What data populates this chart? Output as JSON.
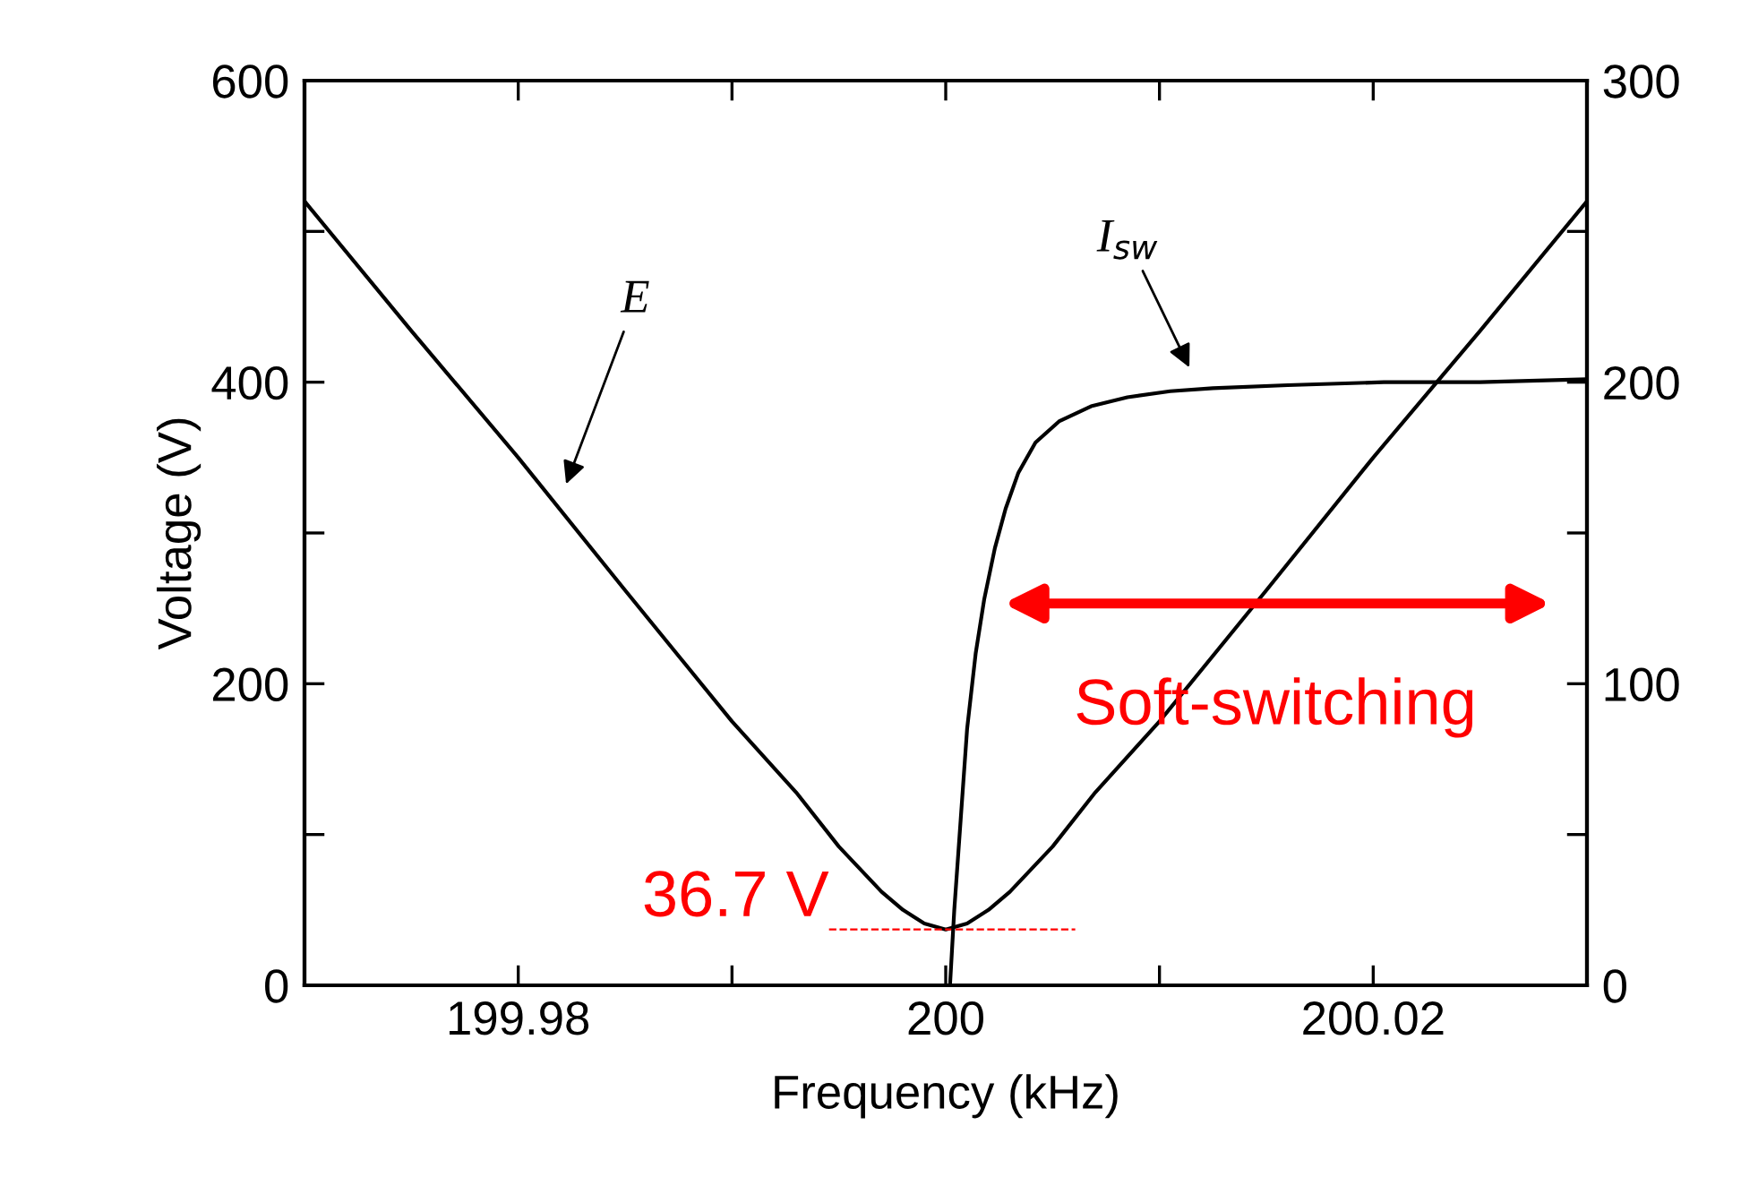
{
  "chart_data": {
    "type": "line",
    "xlabel": "Frequency (kHz)",
    "ylabel": "Voltage (V)",
    "xlim": [
      199.97,
      200.03
    ],
    "xticks": [
      199.98,
      {
        "value": 199.99,
        "label": null
      },
      200,
      {
        "value": 200.01,
        "label": null
      },
      200.02
    ],
    "ylim": [
      0,
      600
    ],
    "yticks": [
      0,
      {
        "value": 100,
        "label": null
      },
      200,
      {
        "value": 300,
        "label": null
      },
      400,
      {
        "value": 500,
        "label": null
      },
      600
    ],
    "y2lim": [
      0,
      300
    ],
    "y2ticks": [
      0,
      {
        "value": 50,
        "label": null
      },
      100,
      {
        "value": 150,
        "label": null
      },
      200,
      {
        "value": 250,
        "label": null
      },
      300
    ],
    "grid": false,
    "marker": "none",
    "line_style": "solid",
    "series": [
      {
        "color": "#000000",
        "x": [
          199.97,
          199.975,
          199.98,
          199.985,
          199.99,
          199.993,
          199.995,
          199.996,
          199.997,
          199.998,
          199.999,
          200,
          200.001,
          200.002,
          200.003,
          200.004,
          200.005,
          200.007,
          200.01,
          200.015,
          200.02,
          200.025,
          200.03
        ],
        "values": [
          520,
          434,
          350,
          262,
          175,
          128,
          92,
          77,
          62,
          50,
          41,
          37,
          41,
          50,
          62,
          77,
          92,
          128,
          175,
          262,
          350,
          434,
          520
        ]
      },
      {
        "color": "#000000",
        "axis": "y2",
        "x": [
          200.0002,
          200.0004,
          200.0007,
          200.001,
          200.0014,
          200.0018,
          200.0023,
          200.0028,
          200.0034,
          200.0042,
          200.0053,
          200.0068,
          200.0085,
          200.0105,
          200.0125,
          200.016,
          200.0205,
          200.025,
          200.03
        ],
        "values": [
          0,
          25,
          55,
          85,
          110,
          128,
          145,
          158,
          170,
          180,
          187,
          192,
          195,
          197,
          198,
          199,
          200,
          200,
          201
        ]
      }
    ],
    "annotations": [
      "E",
      "I$_{sw}$",
      "36.7 V",
      "Soft-switching"
    ]
  }
}
